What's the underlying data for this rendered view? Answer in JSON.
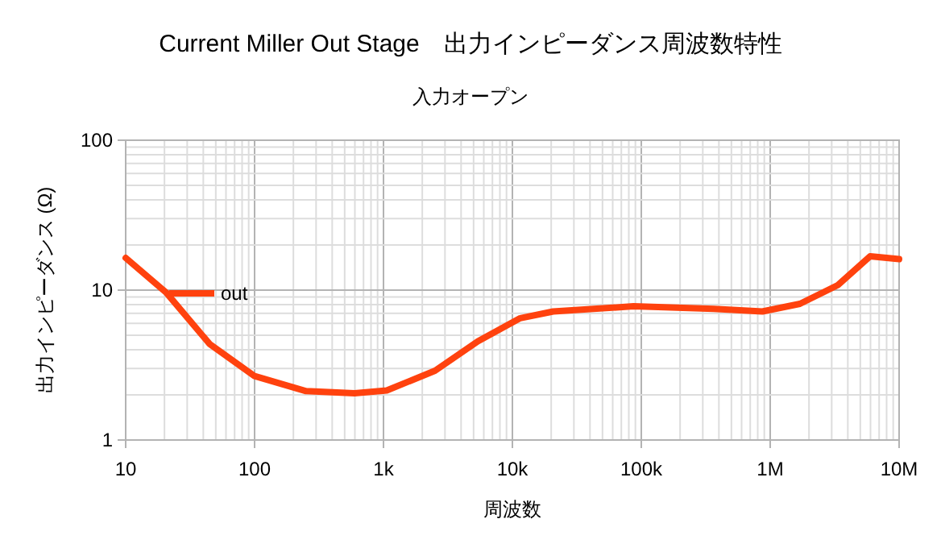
{
  "chart_data": {
    "type": "line",
    "title": "Current Miller Out Stage　出力インピーダンス周波数特性",
    "subtitle": "入力オープン",
    "xlabel": "周波数",
    "ylabel": "出力インピーダンス (Ω)",
    "x": [
      10,
      20.7,
      44.7,
      100,
      251,
      596,
      1060,
      2512,
      5400,
      11500,
      20700,
      87000,
      365000,
      870000,
      1700000,
      3350000,
      5960000,
      10000000
    ],
    "series": [
      {
        "name": "out",
        "color": "#ff420e",
        "values": [
          16.4,
          9.6,
          4.38,
          2.67,
          2.12,
          2.05,
          2.14,
          2.9,
          4.56,
          6.5,
          7.2,
          7.8,
          7.5,
          7.2,
          8.1,
          10.8,
          16.8,
          16.1
        ]
      }
    ],
    "log": "xy",
    "xlim": [
      10,
      10000000
    ],
    "ylim": [
      1,
      100
    ],
    "xticks": [
      10,
      100,
      {
        "value": 1000,
        "label": "1k"
      },
      {
        "value": 10000,
        "label": "10k"
      },
      {
        "value": 100000,
        "label": "100k"
      },
      {
        "value": 1000000,
        "label": "1M"
      },
      {
        "value": 10000000,
        "label": "10M"
      }
    ],
    "yticks": [
      1,
      10,
      100
    ],
    "grid": true,
    "legend": "left",
    "line_style": "solid"
  }
}
